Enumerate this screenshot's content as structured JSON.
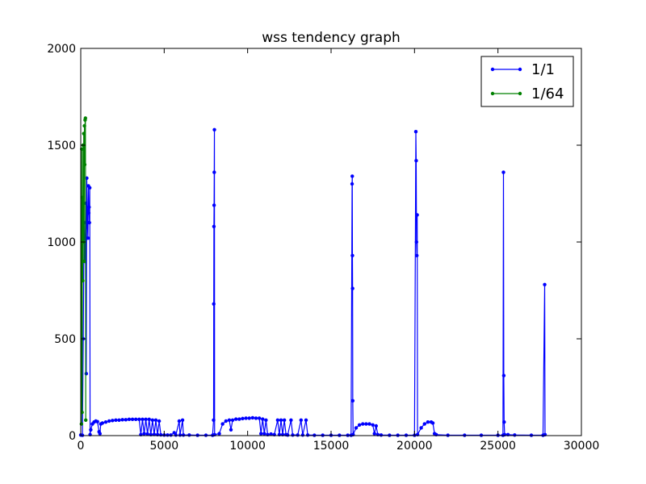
{
  "chart_data": {
    "type": "line",
    "title": "wss tendency graph",
    "xlabel": "",
    "ylabel": "",
    "xlim": [
      0,
      30000
    ],
    "ylim": [
      0,
      2000
    ],
    "xticks": [
      0,
      5000,
      10000,
      15000,
      20000,
      25000,
      30000
    ],
    "xtick_labels": [
      "0",
      "5000",
      "10000",
      "15000",
      "20000",
      "25000",
      "30000"
    ],
    "yticks": [
      0,
      500,
      1000,
      1500,
      2000
    ],
    "ytick_labels": [
      "0",
      "500",
      "1000",
      "1500",
      "2000"
    ],
    "grid": false,
    "legend_position": "upper-right",
    "series": [
      {
        "name": "1/1",
        "color": "#0000ff",
        "marker": "circle",
        "points": [
          [
            0,
            3
          ],
          [
            100,
            2
          ],
          [
            150,
            500
          ],
          [
            200,
            1100
          ],
          [
            250,
            900
          ],
          [
            300,
            1200
          ],
          [
            330,
            320
          ],
          [
            360,
            1330
          ],
          [
            400,
            1100
          ],
          [
            430,
            1020
          ],
          [
            460,
            1290
          ],
          [
            480,
            1150
          ],
          [
            500,
            1180
          ],
          [
            520,
            1100
          ],
          [
            540,
            1280
          ],
          [
            560,
            5
          ],
          [
            600,
            30
          ],
          [
            700,
            60
          ],
          [
            800,
            70
          ],
          [
            900,
            75
          ],
          [
            1000,
            72
          ],
          [
            1100,
            20
          ],
          [
            1150,
            10
          ],
          [
            1200,
            60
          ],
          [
            1300,
            65
          ],
          [
            1500,
            70
          ],
          [
            1700,
            75
          ],
          [
            1900,
            78
          ],
          [
            2100,
            80
          ],
          [
            2300,
            80
          ],
          [
            2500,
            82
          ],
          [
            2700,
            82
          ],
          [
            2900,
            84
          ],
          [
            3100,
            84
          ],
          [
            3300,
            84
          ],
          [
            3500,
            84
          ],
          [
            3600,
            5
          ],
          [
            3700,
            84
          ],
          [
            3800,
            10
          ],
          [
            3900,
            84
          ],
          [
            4000,
            8
          ],
          [
            4100,
            84
          ],
          [
            4200,
            5
          ],
          [
            4300,
            80
          ],
          [
            4400,
            6
          ],
          [
            4500,
            80
          ],
          [
            4600,
            5
          ],
          [
            4700,
            75
          ],
          [
            4800,
            4
          ],
          [
            5000,
            3
          ],
          [
            5200,
            3
          ],
          [
            5400,
            3
          ],
          [
            5600,
            15
          ],
          [
            5700,
            3
          ],
          [
            5900,
            75
          ],
          [
            5950,
            3
          ],
          [
            6100,
            80
          ],
          [
            6150,
            3
          ],
          [
            6500,
            3
          ],
          [
            7000,
            2
          ],
          [
            7500,
            2
          ],
          [
            7900,
            2
          ],
          [
            7960,
            80
          ],
          [
            7970,
            680
          ],
          [
            7980,
            1080
          ],
          [
            7990,
            1190
          ],
          [
            8000,
            1360
          ],
          [
            8010,
            1580
          ],
          [
            8020,
            5
          ],
          [
            8300,
            10
          ],
          [
            8500,
            60
          ],
          [
            8700,
            75
          ],
          [
            8900,
            80
          ],
          [
            9000,
            30
          ],
          [
            9100,
            80
          ],
          [
            9300,
            85
          ],
          [
            9500,
            85
          ],
          [
            9700,
            88
          ],
          [
            9900,
            90
          ],
          [
            10100,
            90
          ],
          [
            10300,
            92
          ],
          [
            10500,
            90
          ],
          [
            10700,
            90
          ],
          [
            10800,
            10
          ],
          [
            10900,
            85
          ],
          [
            11000,
            10
          ],
          [
            11100,
            80
          ],
          [
            11200,
            5
          ],
          [
            11400,
            8
          ],
          [
            11600,
            5
          ],
          [
            11800,
            80
          ],
          [
            11900,
            5
          ],
          [
            12000,
            80
          ],
          [
            12100,
            5
          ],
          [
            12200,
            80
          ],
          [
            12300,
            5
          ],
          [
            12400,
            3
          ],
          [
            12600,
            80
          ],
          [
            12700,
            3
          ],
          [
            13000,
            3
          ],
          [
            13200,
            80
          ],
          [
            13300,
            3
          ],
          [
            13500,
            80
          ],
          [
            13600,
            3
          ],
          [
            14000,
            2
          ],
          [
            14500,
            2
          ],
          [
            15000,
            2
          ],
          [
            15500,
            2
          ],
          [
            16000,
            2
          ],
          [
            16200,
            2
          ],
          [
            16260,
            1300
          ],
          [
            16270,
            1340
          ],
          [
            16280,
            930
          ],
          [
            16290,
            760
          ],
          [
            16300,
            180
          ],
          [
            16320,
            5
          ],
          [
            16500,
            40
          ],
          [
            16700,
            55
          ],
          [
            16900,
            60
          ],
          [
            17100,
            60
          ],
          [
            17300,
            60
          ],
          [
            17500,
            55
          ],
          [
            17600,
            10
          ],
          [
            17700,
            50
          ],
          [
            17800,
            5
          ],
          [
            18000,
            3
          ],
          [
            18500,
            2
          ],
          [
            19000,
            2
          ],
          [
            19500,
            2
          ],
          [
            20000,
            2
          ],
          [
            20080,
            1570
          ],
          [
            20100,
            1420
          ],
          [
            20120,
            1000
          ],
          [
            20140,
            930
          ],
          [
            20160,
            1140
          ],
          [
            20180,
            5
          ],
          [
            20400,
            40
          ],
          [
            20600,
            60
          ],
          [
            20800,
            70
          ],
          [
            21000,
            70
          ],
          [
            21100,
            65
          ],
          [
            21200,
            10
          ],
          [
            21300,
            5
          ],
          [
            22000,
            2
          ],
          [
            23000,
            2
          ],
          [
            24000,
            2
          ],
          [
            25000,
            2
          ],
          [
            25300,
            2
          ],
          [
            25330,
            1360
          ],
          [
            25350,
            310
          ],
          [
            25370,
            70
          ],
          [
            25400,
            5
          ],
          [
            25600,
            5
          ],
          [
            26000,
            3
          ],
          [
            27000,
            2
          ],
          [
            27700,
            2
          ],
          [
            27800,
            780
          ],
          [
            27820,
            5
          ]
        ]
      },
      {
        "name": "1/64",
        "color": "#008000",
        "marker": "circle",
        "points": [
          [
            40,
            60
          ],
          [
            60,
            1480
          ],
          [
            80,
            120
          ],
          [
            100,
            1230
          ],
          [
            120,
            800
          ],
          [
            140,
            1500
          ],
          [
            160,
            1000
          ],
          [
            180,
            1560
          ],
          [
            200,
            900
          ],
          [
            220,
            1600
          ],
          [
            240,
            1400
          ],
          [
            260,
            1630
          ],
          [
            280,
            1640
          ],
          [
            300,
            80
          ]
        ]
      }
    ]
  }
}
